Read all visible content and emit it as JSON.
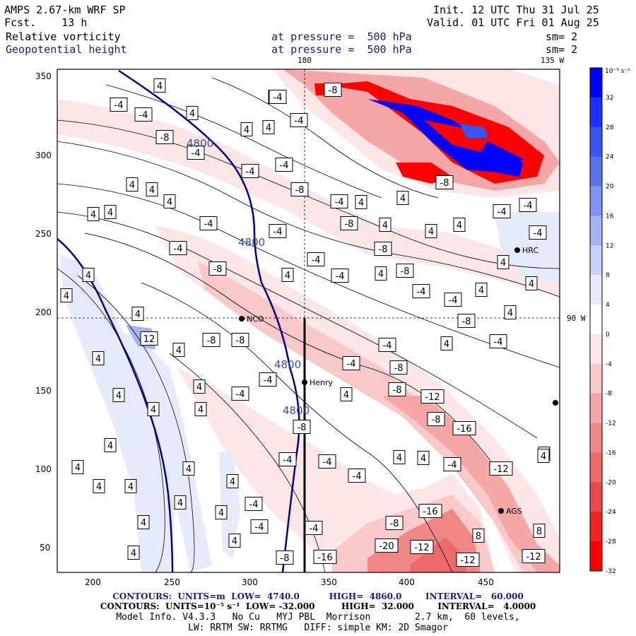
{
  "header": {
    "model": "AMPS 2.67-km WRF SP",
    "forecast": "Fcst.    13 h",
    "init": "Init. 12 UTC Thu 31 Jul 25",
    "valid": "Valid. 01 UTC Fri 01 Aug 25",
    "field1_name": "Relative vorticity",
    "field1_level": "at pressure =  500 hPa",
    "field1_sm": "sm= 2",
    "field2_name": "Geopotential height",
    "field2_level": "at pressure =  500 hPa",
    "field2_sm": "sm= 2"
  },
  "map": {
    "lon_top_left": "180",
    "lon_top_right": "135 W",
    "lon_right": "90 W",
    "x_ticks": [
      "200",
      "250",
      "300",
      "350",
      "400",
      "450"
    ],
    "y_ticks": [
      "350",
      "300",
      "250",
      "200",
      "150",
      "100",
      "50"
    ],
    "stations": [
      {
        "name": "NCO"
      },
      {
        "name": "Henry"
      },
      {
        "name": "HRC"
      },
      {
        "name": "AGS"
      }
    ],
    "height_labels": [
      "4800",
      "4800",
      "4800",
      "4800"
    ],
    "colors": {
      "neg_strong": "#ff0000",
      "pos_strong": "#0000ff",
      "height_line": "#00008b"
    }
  },
  "colorbar": {
    "unit": "10⁻⁵ s⁻¹",
    "ticks": [
      "32",
      "28",
      "24",
      "20",
      "16",
      "12",
      "8",
      "4",
      "0",
      "-4",
      "-8",
      "-12",
      "-16",
      "-20",
      "-24",
      "-28",
      "-32"
    ],
    "colors": [
      "#0000ff",
      "#1f2fff",
      "#3a55f0",
      "#5a73e8",
      "#7f94ee",
      "#a5b3f3",
      "#c8d2f8",
      "#e6ebfc",
      "#ffffff",
      "#fde6e6",
      "#f9c8c8",
      "#f5a6a6",
      "#f18888",
      "#ee6a6a",
      "#ea4a4a",
      "#f02424",
      "#ff0000"
    ]
  },
  "contour_labels": [
    "-4",
    "4",
    "-8",
    "8",
    "12",
    "-12",
    "-16",
    "-20"
  ],
  "footer": {
    "line1": "CONTOURS:  UNITS=m  LOW=  4740.0          HIGH=  4860.0        INTERVAL=   60.000",
    "line2": "CONTOURS:  UNITS=10⁻⁵ s⁻¹  LOW= -32.000         HIGH=  32.000        INTERVAL=   4.0000",
    "line3": "Model Info. V4.3.3   No Cu   MYJ PBL  Morrison        2.7 km,  60 levels,",
    "line4": "LW: RRTM SW: RRTMG   DIFF: simple KM: 2D Smagor"
  }
}
